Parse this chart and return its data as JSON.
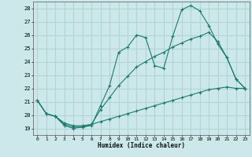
{
  "background_color": "#cce8ea",
  "grid_color": "#b0d4d8",
  "line_color": "#1e7a6e",
  "xlabel": "Humidex (Indice chaleur)",
  "xlim": [
    -0.5,
    23.5
  ],
  "ylim": [
    18.5,
    28.5
  ],
  "xticks": [
    0,
    1,
    2,
    3,
    4,
    5,
    6,
    7,
    8,
    9,
    10,
    11,
    12,
    13,
    14,
    15,
    16,
    17,
    18,
    19,
    20,
    21,
    22,
    23
  ],
  "yticks": [
    19,
    20,
    21,
    22,
    23,
    24,
    25,
    26,
    27,
    28
  ],
  "series1_x": [
    0,
    1,
    2,
    3,
    4,
    5,
    6,
    7,
    8,
    9,
    10,
    11,
    12,
    13,
    14,
    15,
    16,
    17,
    18,
    19,
    20,
    21,
    22,
    23
  ],
  "series1_y": [
    21.1,
    20.1,
    19.9,
    19.2,
    19.0,
    19.1,
    19.2,
    20.7,
    22.2,
    24.7,
    25.1,
    26.0,
    25.8,
    23.7,
    23.5,
    25.9,
    27.9,
    28.2,
    27.8,
    26.7,
    25.3,
    24.3,
    22.7,
    22.0
  ],
  "series2_x": [
    0,
    1,
    2,
    3,
    4,
    5,
    6,
    7,
    8,
    9,
    10,
    11,
    12,
    13,
    14,
    15,
    16,
    17,
    18,
    19,
    20,
    21,
    22,
    23
  ],
  "series2_y": [
    21.1,
    20.1,
    19.9,
    19.3,
    19.1,
    19.1,
    19.3,
    20.4,
    21.3,
    22.2,
    22.9,
    23.6,
    24.0,
    24.4,
    24.7,
    25.1,
    25.4,
    25.7,
    25.9,
    26.2,
    25.5,
    24.3,
    22.7,
    22.0
  ],
  "series3_x": [
    0,
    1,
    2,
    3,
    4,
    5,
    6,
    7,
    8,
    9,
    10,
    11,
    12,
    13,
    14,
    15,
    16,
    17,
    18,
    19,
    20,
    21,
    22,
    23
  ],
  "series3_y": [
    21.1,
    20.1,
    19.9,
    19.4,
    19.2,
    19.2,
    19.3,
    19.5,
    19.7,
    19.9,
    20.1,
    20.3,
    20.5,
    20.7,
    20.9,
    21.1,
    21.3,
    21.5,
    21.7,
    21.9,
    22.0,
    22.1,
    22.0,
    22.0
  ]
}
